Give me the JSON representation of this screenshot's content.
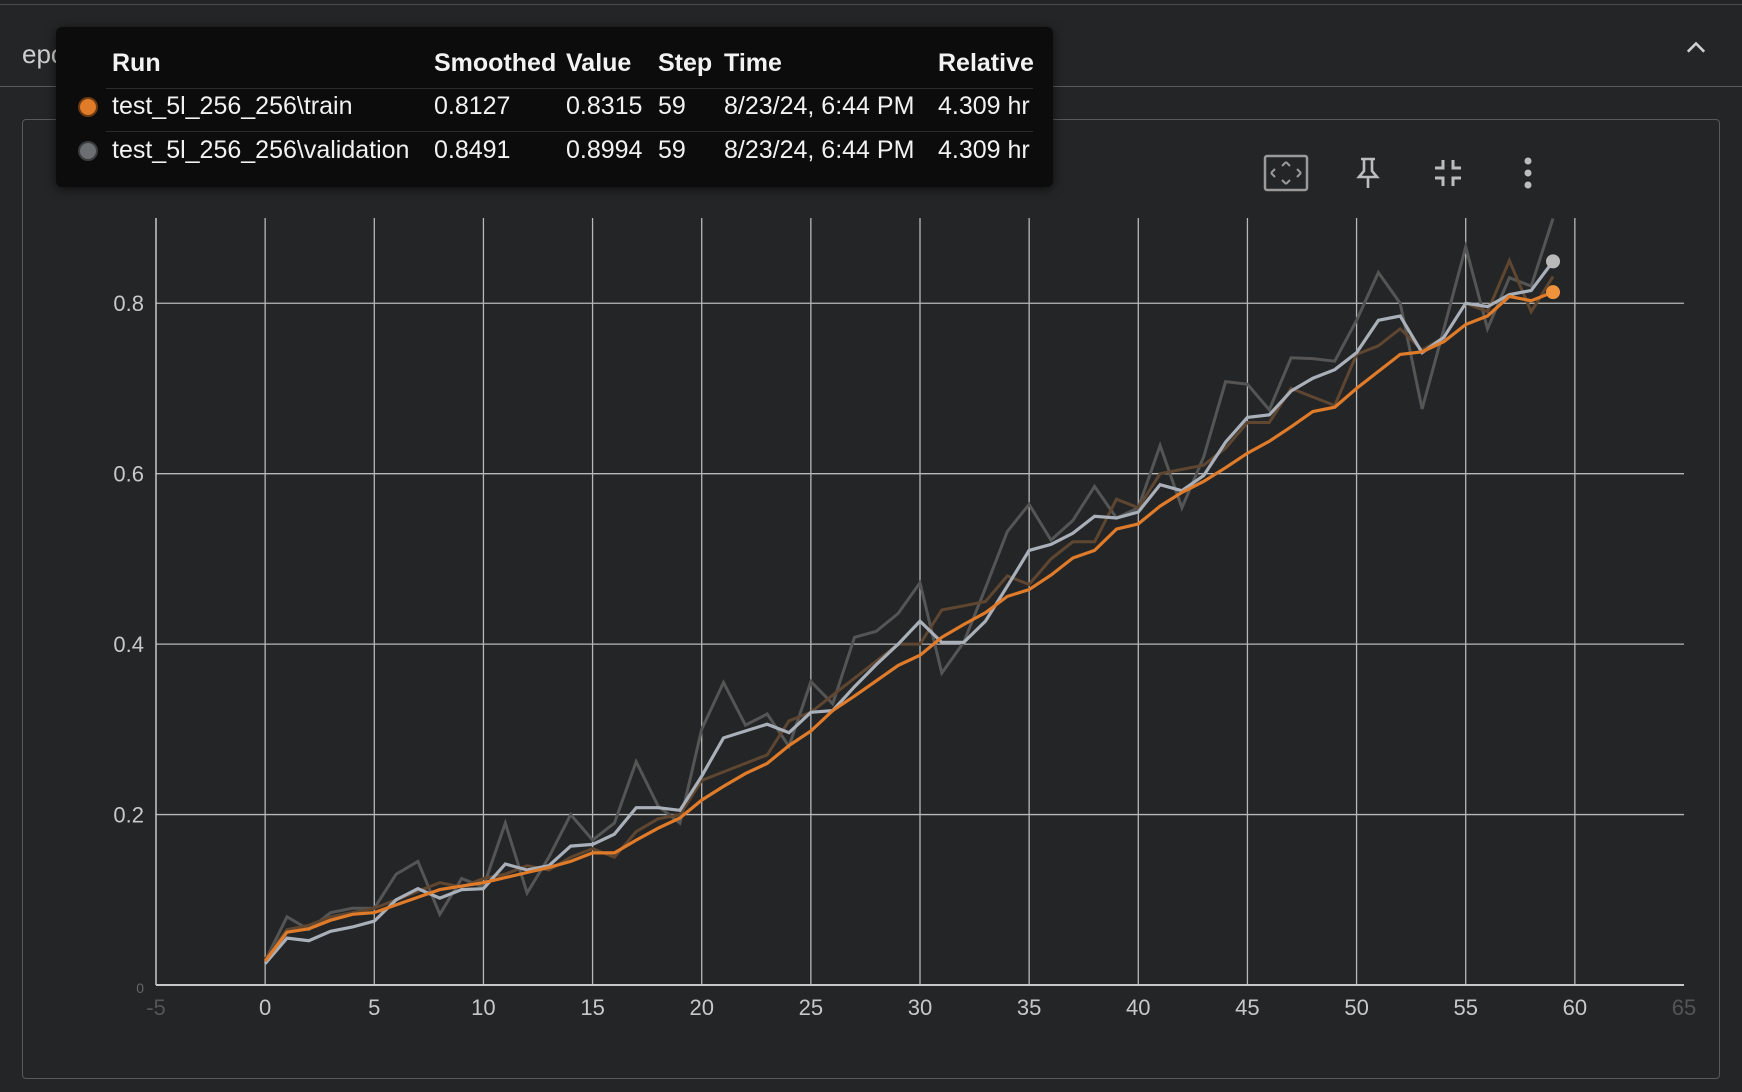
{
  "section": {
    "title": "epoch_accuracy"
  },
  "card": {
    "title": "epoch_accuracy"
  },
  "icons": [
    "chevron-up-icon",
    "fit-domain-icon",
    "pin-icon",
    "collapse-card-icon",
    "more-vert-icon"
  ],
  "tooltip": {
    "headers": {
      "run": "Run",
      "smoothed": "Smoothed",
      "value": "Value",
      "step": "Step",
      "time": "Time",
      "relative": "Relative"
    },
    "rows": [
      {
        "color": "#e07b2a",
        "run": "test_5l_256_256\\train",
        "smoothed": "0.8127",
        "value": "0.8315",
        "step": "59",
        "time": "8/23/24, 6:44 PM",
        "relative": "4.309 hr"
      },
      {
        "color": "#6b6f72",
        "run": "test_5l_256_256\\validation",
        "smoothed": "0.8491",
        "value": "0.8994",
        "step": "59",
        "time": "8/23/24, 6:44 PM",
        "relative": "4.309 hr"
      }
    ]
  },
  "chart_data": {
    "type": "line",
    "title": "epoch_accuracy",
    "xlabel": "",
    "ylabel": "",
    "xlim": [
      -5,
      65
    ],
    "ylim": [
      0,
      0.9
    ],
    "x_ticks": [
      "-5",
      "0",
      "5",
      "10",
      "15",
      "20",
      "25",
      "30",
      "35",
      "40",
      "45",
      "50",
      "55",
      "60",
      "65"
    ],
    "y_ticks": [
      "0",
      "0.2",
      "0.4",
      "0.6",
      "0.8"
    ],
    "grid": true,
    "colors": {
      "train_smoothed": "#e07b2a",
      "train_raw": "#5e4630",
      "validation_smoothed": "#a9b0ba",
      "validation_raw": "#555555",
      "train_marker": "#f0923b",
      "validation_marker": "#b9b9b9"
    },
    "x": [
      0,
      1,
      2,
      3,
      4,
      5,
      6,
      7,
      8,
      9,
      10,
      11,
      12,
      13,
      14,
      15,
      16,
      17,
      18,
      19,
      20,
      21,
      22,
      23,
      24,
      25,
      26,
      27,
      28,
      29,
      30,
      31,
      32,
      33,
      34,
      35,
      36,
      37,
      38,
      39,
      40,
      41,
      42,
      43,
      44,
      45,
      46,
      47,
      48,
      49,
      50,
      51,
      52,
      53,
      54,
      55,
      56,
      57,
      58,
      59
    ],
    "series": [
      {
        "name": "test_5l_256_256\\train",
        "values": [
          0.028,
          0.062,
          0.066,
          0.076,
          0.083,
          0.085,
          0.094,
          0.103,
          0.112,
          0.116,
          0.12,
          0.126,
          0.132,
          0.138,
          0.145,
          0.155,
          0.155,
          0.17,
          0.184,
          0.196,
          0.217,
          0.233,
          0.248,
          0.26,
          0.281,
          0.298,
          0.322,
          0.339,
          0.357,
          0.375,
          0.387,
          0.408,
          0.423,
          0.437,
          0.456,
          0.464,
          0.481,
          0.501,
          0.51,
          0.535,
          0.541,
          0.562,
          0.578,
          0.591,
          0.607,
          0.624,
          0.638,
          0.655,
          0.673,
          0.678,
          0.7,
          0.72,
          0.74,
          0.743,
          0.755,
          0.775,
          0.785,
          0.808,
          0.803,
          0.813
        ],
        "raw": [
          0.03,
          0.065,
          0.07,
          0.08,
          0.085,
          0.09,
          0.1,
          0.11,
          0.12,
          0.115,
          0.125,
          0.13,
          0.14,
          0.135,
          0.15,
          0.16,
          0.15,
          0.18,
          0.195,
          0.2,
          0.24,
          0.25,
          0.26,
          0.27,
          0.31,
          0.32,
          0.34,
          0.36,
          0.38,
          0.4,
          0.4,
          0.44,
          0.445,
          0.45,
          0.48,
          0.47,
          0.5,
          0.52,
          0.52,
          0.57,
          0.56,
          0.6,
          0.605,
          0.61,
          0.63,
          0.66,
          0.66,
          0.7,
          0.69,
          0.68,
          0.74,
          0.75,
          0.77,
          0.745,
          0.76,
          0.8,
          0.79,
          0.85,
          0.79,
          0.8315
        ]
      },
      {
        "name": "test_5l_256_256\\validation",
        "values": [
          0.025,
          0.055,
          0.052,
          0.063,
          0.068,
          0.075,
          0.1,
          0.113,
          0.102,
          0.112,
          0.113,
          0.142,
          0.135,
          0.14,
          0.163,
          0.165,
          0.177,
          0.208,
          0.208,
          0.205,
          0.245,
          0.29,
          0.298,
          0.306,
          0.296,
          0.32,
          0.322,
          0.35,
          0.376,
          0.4,
          0.427,
          0.402,
          0.402,
          0.427,
          0.468,
          0.51,
          0.517,
          0.53,
          0.55,
          0.548,
          0.555,
          0.587,
          0.58,
          0.598,
          0.637,
          0.666,
          0.669,
          0.697,
          0.712,
          0.722,
          0.742,
          0.78,
          0.785,
          0.742,
          0.76,
          0.8,
          0.796,
          0.81,
          0.815,
          0.8491
        ],
        "raw": [
          0.028,
          0.08,
          0.065,
          0.085,
          0.09,
          0.09,
          0.13,
          0.145,
          0.083,
          0.125,
          0.115,
          0.19,
          0.108,
          0.15,
          0.2,
          0.17,
          0.19,
          0.262,
          0.21,
          0.19,
          0.3,
          0.355,
          0.305,
          0.318,
          0.28,
          0.356,
          0.33,
          0.408,
          0.415,
          0.436,
          0.472,
          0.366,
          0.402,
          0.466,
          0.532,
          0.564,
          0.522,
          0.545,
          0.585,
          0.548,
          0.56,
          0.633,
          0.56,
          0.62,
          0.708,
          0.705,
          0.675,
          0.736,
          0.735,
          0.732,
          0.78,
          0.836,
          0.8,
          0.676,
          0.77,
          0.866,
          0.77,
          0.83,
          0.82,
          0.8994
        ]
      }
    ]
  }
}
